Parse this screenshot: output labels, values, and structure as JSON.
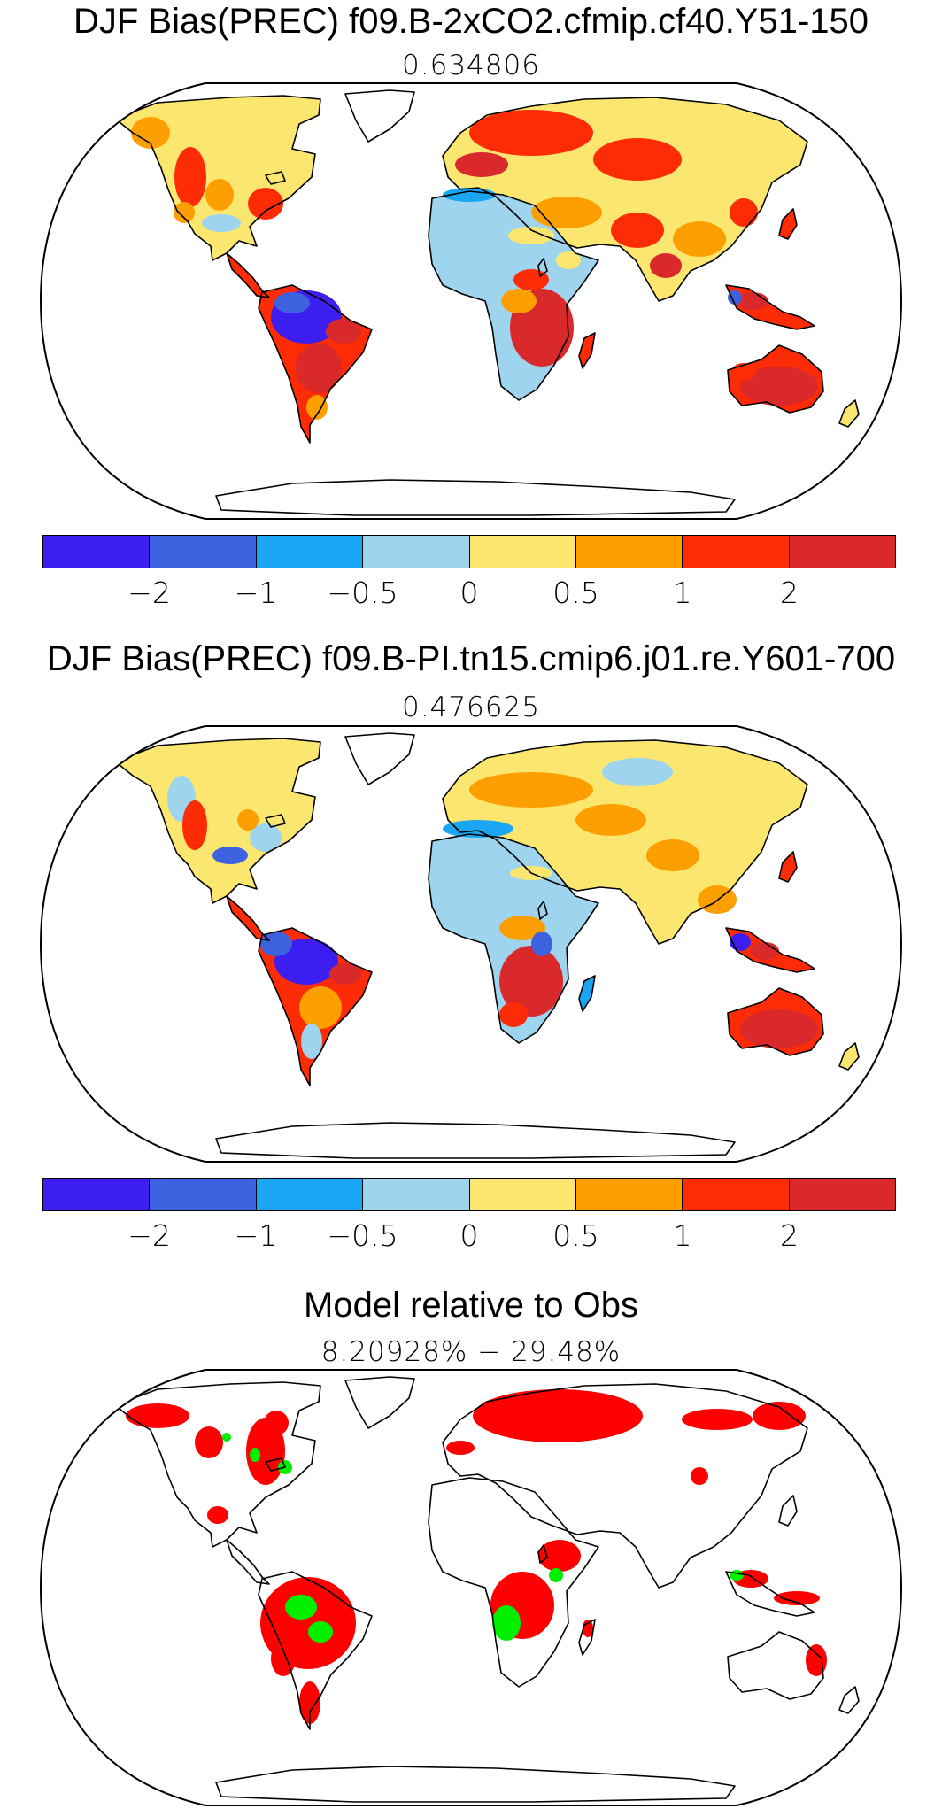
{
  "panels": [
    {
      "title": "DJF Bias(PREC) f09.B-2xCO2.cfmip.cf40.Y51-150",
      "subtitle": "0.634806"
    },
    {
      "title": "DJF Bias(PREC) f09.B-PI.tn15.cmip6.j01.re.Y601-700",
      "subtitle": "0.476625"
    },
    {
      "title": "Model relative to Obs",
      "subtitle": "8.20928% − 29.48%"
    }
  ],
  "colorbar": {
    "colors": [
      "#3d1ef0",
      "#3d62e0",
      "#1aa6f2",
      "#9ed4ee",
      "#fbe770",
      "#fd9f00",
      "#fd2c06",
      "#d9292a"
    ],
    "tick_labels": [
      "−2",
      "−1",
      "−0.5",
      "0",
      "0.5",
      "1",
      "2"
    ]
  },
  "relative_colors": {
    "model_worse": "#ff0000",
    "model_better": "#00ee00"
  },
  "map_colors": {
    "land_outline": "#000000",
    "background": "#ffffff"
  }
}
